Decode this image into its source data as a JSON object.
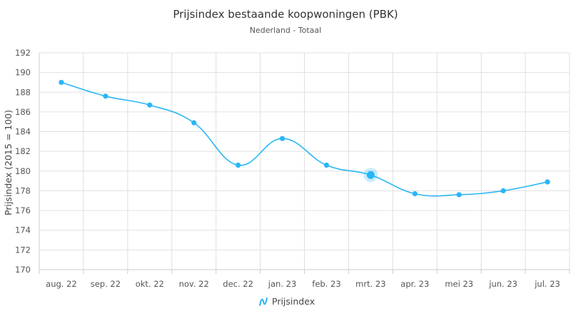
{
  "chart_data": {
    "type": "line",
    "title": "Prijsindex bestaande koopwoningen (PBK)",
    "subtitle": "Nederland - Totaal",
    "ylabel": "Prijsindex (2015 = 100)",
    "xlabel": "",
    "ylim": [
      170,
      192
    ],
    "yticks": [
      170,
      172,
      174,
      176,
      178,
      180,
      182,
      184,
      186,
      188,
      190,
      192
    ],
    "categories": [
      "aug. 22",
      "sep. 22",
      "okt. 22",
      "nov. 22",
      "dec. 22",
      "jan. 23",
      "feb. 23",
      "mrt. 23",
      "apr. 23",
      "mei 23",
      "jun. 23",
      "jul. 23"
    ],
    "series": [
      {
        "name": "Prijsindex",
        "values": [
          189.0,
          187.6,
          186.7,
          184.9,
          180.6,
          183.3,
          180.6,
          179.6,
          177.7,
          177.6,
          178.0,
          178.9
        ]
      }
    ],
    "highlighted_category": "mrt. 23",
    "grid": true,
    "legend": "bottom-center",
    "colors": {
      "series": "#29b6f6",
      "grid": "#e0e0e0",
      "axis": "#cccccc"
    }
  }
}
